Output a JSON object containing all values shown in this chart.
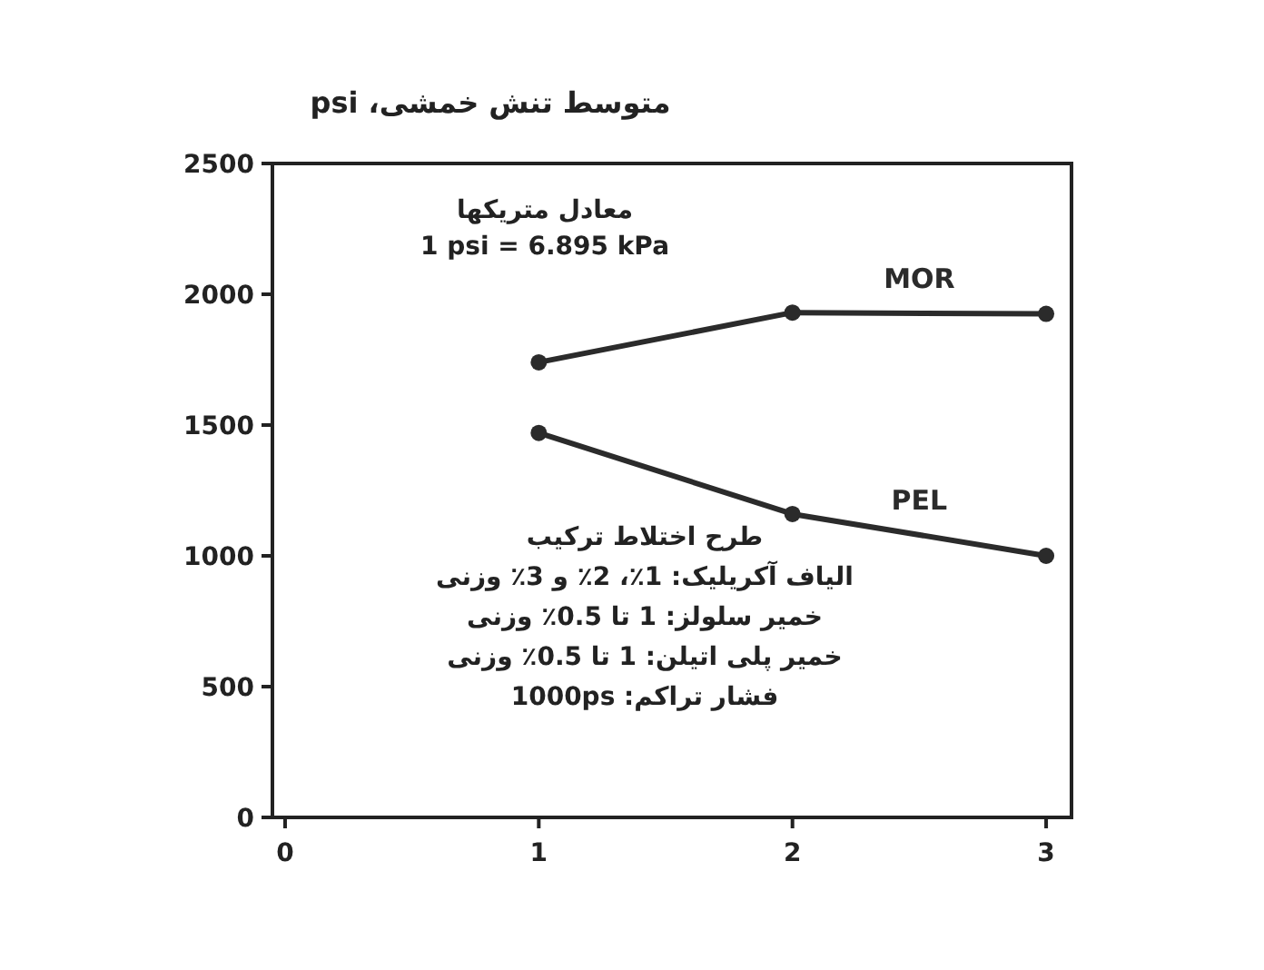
{
  "chart_data": {
    "type": "line",
    "ylabel": "متوسط تنش خمشی، psi",
    "annotations": [
      "معادل متریکها\n1 psi = 6.895 kPa",
      "طرح اختلاط ترکیب\nالیاف آکریلیک: 1٪، 2٪ و 3٪ وزنی\nخمیر سلولز: 1 تا 0.5٪ وزنی\nخمیر پلی اتیلن: 1 تا 0.5٪ وزنی\nفشار تراکم: 1000ps"
    ],
    "x": [
      1,
      2,
      3
    ],
    "series": [
      {
        "name": "MOR",
        "color": "#2b2b2b",
        "values": [
          1740,
          1930,
          1925
        ]
      },
      {
        "name": "PEL",
        "color": "#2b2b2b",
        "values": [
          1470,
          1160,
          1000
        ]
      }
    ],
    "xlim": [
      -0.05,
      3.1
    ],
    "ylim": [
      0,
      2500
    ],
    "xticks": [
      0,
      1,
      2,
      3
    ],
    "yticks": [
      0,
      500,
      1000,
      1500,
      2000,
      2500
    ],
    "marker": "circle",
    "line_style": "solid",
    "grid": false
  }
}
